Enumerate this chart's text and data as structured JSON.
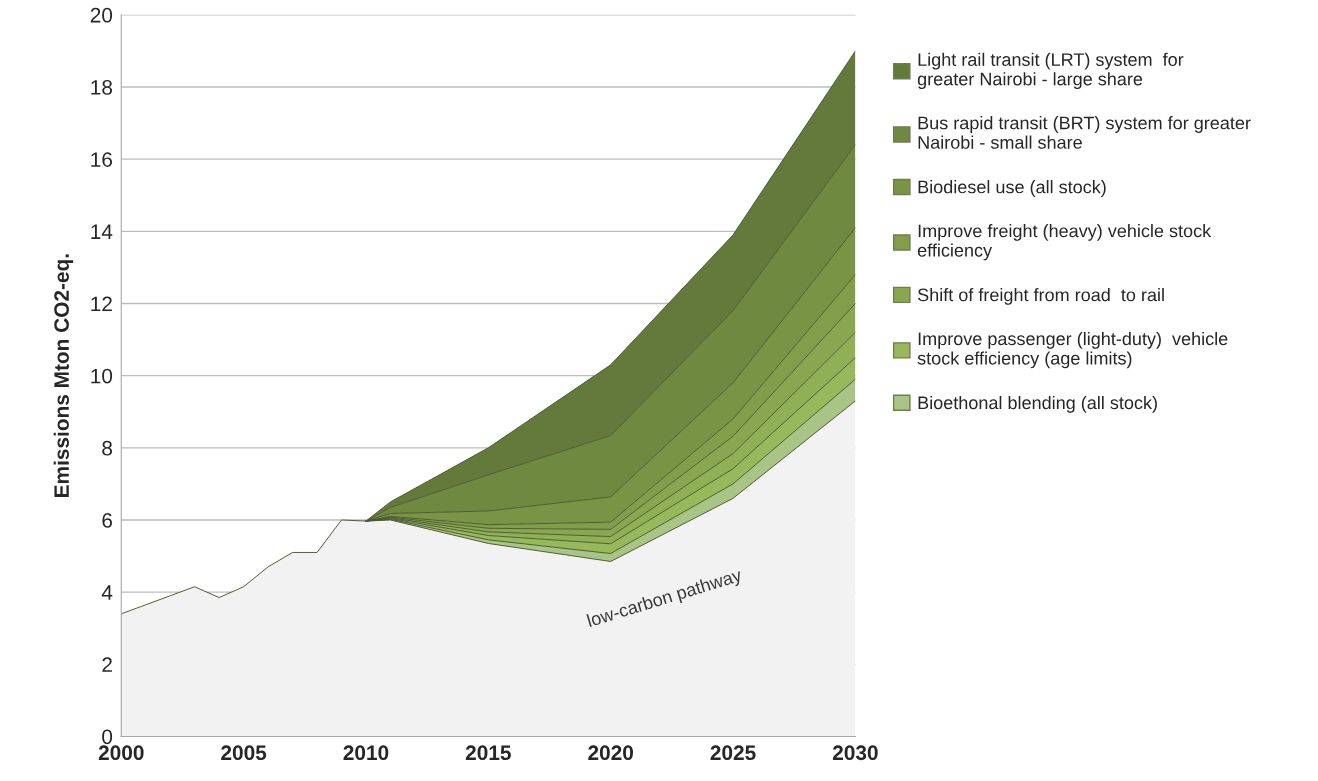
{
  "chart_data": {
    "type": "area",
    "stacked": true,
    "ylabel": "Emissions Mton CO2-eq.",
    "x": [
      2000,
      2001,
      2002,
      2003,
      2004,
      2005,
      2006,
      2007,
      2008,
      2009,
      2010,
      2011,
      2015,
      2020,
      2025,
      2030
    ],
    "series": [
      {
        "color": "#f2f2f2",
        "values": [
          3.4,
          3.65,
          3.9,
          4.15,
          3.85,
          4.15,
          4.7,
          5.1,
          5.1,
          6.0,
          5.97,
          6.0,
          5.35,
          4.85,
          6.6,
          9.3
        ]
      },
      {
        "name": "Bioethonal blending (all stock)",
        "color": "#a9c585",
        "values": [
          null,
          null,
          null,
          null,
          null,
          null,
          null,
          null,
          null,
          null,
          0,
          0.02,
          0.1,
          0.22,
          0.4,
          0.6
        ]
      },
      {
        "name": "Improve passenger (light-duty)  vehicle stock efficiency (age limits)",
        "color": "#98b85c",
        "values": [
          null,
          null,
          null,
          null,
          null,
          null,
          null,
          null,
          null,
          null,
          0,
          0.02,
          0.12,
          0.27,
          0.42,
          0.6
        ]
      },
      {
        "color": "#90b055",
        "values": [
          null,
          null,
          null,
          null,
          null,
          null,
          null,
          null,
          null,
          null,
          0,
          0.02,
          0.1,
          0.2,
          0.42,
          0.7
        ]
      },
      {
        "name": "Shift of freight from road  to rail",
        "color": "#89a750",
        "values": [
          null,
          null,
          null,
          null,
          null,
          null,
          null,
          null,
          null,
          null,
          0,
          0.02,
          0.1,
          0.2,
          0.48,
          0.8
        ]
      },
      {
        "name": "Improve freight (heavy) vehicle stock efficiency",
        "color": "#829e4b",
        "values": [
          null,
          null,
          null,
          null,
          null,
          null,
          null,
          null,
          null,
          null,
          0,
          0.02,
          0.1,
          0.2,
          0.48,
          0.8
        ]
      },
      {
        "name": "Biodiesel use (all stock)",
        "color": "#7a9446",
        "values": [
          null,
          null,
          null,
          null,
          null,
          null,
          null,
          null,
          null,
          null,
          0,
          0.08,
          0.38,
          0.7,
          1.0,
          1.3
        ]
      },
      {
        "name": "Bus rapid transit (BRT) system for greater Nairobi - small share",
        "color": "#6f8a40",
        "values": [
          null,
          null,
          null,
          null,
          null,
          null,
          null,
          null,
          null,
          null,
          0,
          0.17,
          1.0,
          1.7,
          2.0,
          2.3
        ]
      },
      {
        "name": "Light rail transit (LRT) system  for greater Nairobi - large share",
        "color": "#637a3a",
        "values": [
          null,
          null,
          null,
          null,
          null,
          null,
          null,
          null,
          null,
          null,
          0,
          0.15,
          0.75,
          1.96,
          2.1,
          2.6
        ]
      }
    ],
    "xlim": [
      2000,
      2030
    ],
    "xticks": [
      2000,
      2005,
      2010,
      2015,
      2020,
      2025,
      2030
    ],
    "ylim": [
      0,
      20
    ],
    "yticks": [
      0,
      2,
      4,
      6,
      8,
      10,
      12,
      14,
      16,
      18,
      20
    ],
    "grid": "y",
    "legend": "right",
    "annotations": [
      "low-carbon pathway"
    ]
  }
}
